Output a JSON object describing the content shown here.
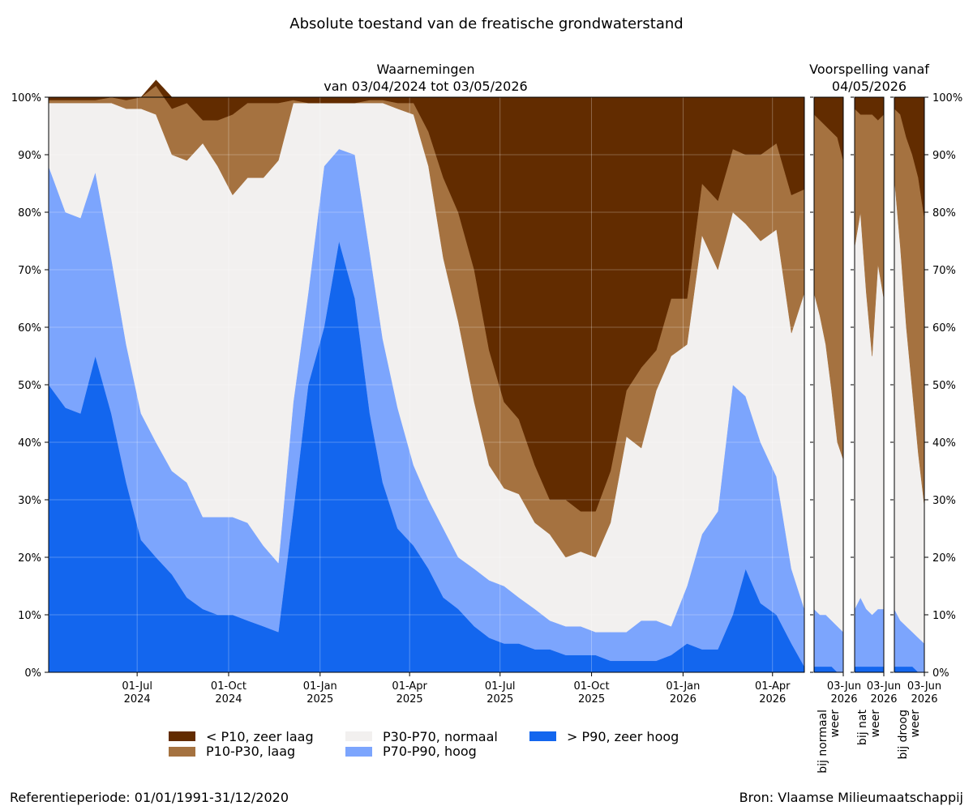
{
  "title": "Absolute toestand van de freatische grondwaterstand",
  "footer": {
    "reference": "Referentieperiode: 01/01/1991-31/12/2020",
    "source": "Bron: Vlaamse Milieumaatschappij"
  },
  "colors": {
    "zeer_laag": "#622c00",
    "laag": "#a57240",
    "normaal": "#f2f0ef",
    "hoog": "#7ca5fd",
    "zeer_hoog": "#1366ee"
  },
  "legend": [
    {
      "key": "zeer_laag",
      "label": "< P10, zeer laag"
    },
    {
      "key": "laag",
      "label": "P10-P30, laag"
    },
    {
      "key": "normaal",
      "label": "P30-P70, normaal"
    },
    {
      "key": "hoog",
      "label": "P70-P90, hoog"
    },
    {
      "key": "zeer_hoog",
      "label": "> P90, zeer hoog"
    }
  ],
  "chart_data": [
    {
      "type": "area",
      "stacked": true,
      "title_line1": "Waarnemingen",
      "title_line2": "van 03/04/2024 tot 03/05/2026",
      "ylim": [
        0,
        100
      ],
      "yticks": [
        "0%",
        "10%",
        "20%",
        "30%",
        "40%",
        "50%",
        "60%",
        "70%",
        "80%",
        "90%",
        "100%"
      ],
      "grid": true,
      "xlim": [
        "2024-04-03",
        "2026-05-03"
      ],
      "xticks": [
        {
          "date": "2024-07-01",
          "label1": "01-Jul",
          "label2": "2024"
        },
        {
          "date": "2024-10-01",
          "label1": "01-Oct",
          "label2": "2024"
        },
        {
          "date": "2025-01-01",
          "label1": "01-Jan",
          "label2": "2025"
        },
        {
          "date": "2025-04-01",
          "label1": "01-Apr",
          "label2": "2025"
        },
        {
          "date": "2025-07-01",
          "label1": "01-Jul",
          "label2": "2025"
        },
        {
          "date": "2025-10-01",
          "label1": "01-Oct",
          "label2": "2025"
        },
        {
          "date": "2026-01-01",
          "label1": "01-Jan",
          "label2": "2026"
        },
        {
          "date": "2026-04-01",
          "label1": "01-Apr",
          "label2": "2026"
        }
      ],
      "x": [
        "2024-04-03",
        "2024-04-20",
        "2024-05-05",
        "2024-05-20",
        "2024-06-05",
        "2024-06-20",
        "2024-07-05",
        "2024-07-20",
        "2024-08-05",
        "2024-08-20",
        "2024-09-05",
        "2024-09-20",
        "2024-10-05",
        "2024-10-20",
        "2024-11-05",
        "2024-11-20",
        "2024-12-05",
        "2024-12-20",
        "2025-01-05",
        "2025-01-20",
        "2025-02-05",
        "2025-02-20",
        "2025-03-05",
        "2025-03-20",
        "2025-04-05",
        "2025-04-20",
        "2025-05-05",
        "2025-05-20",
        "2025-06-05",
        "2025-06-20",
        "2025-07-05",
        "2025-07-20",
        "2025-08-05",
        "2025-08-20",
        "2025-09-05",
        "2025-09-20",
        "2025-10-05",
        "2025-10-20",
        "2025-11-05",
        "2025-11-20",
        "2025-12-05",
        "2025-12-20",
        "2026-01-05",
        "2026-01-20",
        "2026-02-05",
        "2026-02-20",
        "2026-03-05",
        "2026-03-20",
        "2026-04-05",
        "2026-04-20",
        "2026-05-03"
      ],
      "series": [
        {
          "key": "zeer_hoog",
          "values": [
            50,
            46,
            45,
            55,
            45,
            33,
            23,
            20,
            17,
            13,
            11,
            10,
            10,
            9,
            8,
            7,
            28,
            50,
            60,
            75,
            65,
            45,
            33,
            25,
            22,
            18,
            13,
            11,
            8,
            6,
            5,
            5,
            4,
            4,
            3,
            3,
            3,
            2,
            2,
            2,
            2,
            3,
            5,
            4,
            4,
            10,
            18,
            12,
            10,
            5,
            1
          ]
        },
        {
          "key": "hoog",
          "values": [
            38,
            34,
            34,
            32,
            27,
            24,
            22,
            20,
            18,
            20,
            16,
            17,
            17,
            17,
            14,
            12,
            19,
            16,
            28,
            16,
            25,
            28,
            25,
            21,
            14,
            12,
            12,
            9,
            10,
            10,
            10,
            8,
            7,
            5,
            5,
            5,
            4,
            5,
            5,
            7,
            7,
            5,
            10,
            20,
            24,
            40,
            30,
            28,
            24,
            13,
            10
          ]
        },
        {
          "key": "normaal",
          "values": [
            11,
            19,
            20,
            12,
            27,
            41,
            53,
            57,
            55,
            56,
            65,
            61,
            56,
            60,
            64,
            70,
            52,
            33,
            11,
            8,
            9,
            26,
            41,
            52,
            61,
            58,
            47,
            41,
            29,
            20,
            17,
            18,
            15,
            15,
            12,
            13,
            13,
            19,
            34,
            30,
            40,
            47,
            42,
            52,
            42,
            30,
            30,
            35,
            43,
            41,
            55
          ]
        },
        {
          "key": "laag",
          "values": [
            0.5,
            0.5,
            0.5,
            0.5,
            1,
            1.5,
            2,
            5,
            8,
            10,
            4,
            8,
            14,
            13,
            13,
            10,
            0.5,
            0,
            0,
            0,
            0,
            0.5,
            0.5,
            1,
            2,
            6,
            14,
            19,
            23,
            20,
            15,
            13,
            10,
            6,
            10,
            7,
            8,
            9,
            8,
            14,
            7,
            10,
            8,
            9,
            12,
            11,
            12,
            15,
            15,
            24,
            18
          ]
        },
        {
          "key": "zeer_laag",
          "values": [
            0.5,
            0.5,
            0.5,
            0.5,
            0,
            0.5,
            0,
            1,
            2,
            1,
            4,
            4,
            3,
            1,
            1,
            1,
            0.5,
            1,
            1,
            1,
            1,
            0.5,
            0.5,
            1,
            1,
            6,
            14,
            20,
            30,
            44,
            53,
            56,
            64,
            70,
            70,
            72,
            72,
            65,
            51,
            47,
            44,
            35,
            35,
            15,
            18,
            9,
            10,
            10,
            8,
            17,
            16
          ]
        }
      ]
    },
    {
      "type": "area",
      "stacked": true,
      "scenario_line1": "bij normaal",
      "scenario_line2": "weer",
      "xtick_label1": "03-Jun",
      "xtick_label2": "2026",
      "x": [
        "2026-05-04",
        "2026-05-10",
        "2026-05-16",
        "2026-05-22",
        "2026-05-28",
        "2026-06-03"
      ],
      "series": [
        {
          "key": "zeer_hoog",
          "values": [
            1,
            1,
            1,
            1,
            0,
            0
          ]
        },
        {
          "key": "hoog",
          "values": [
            10,
            9,
            9,
            8,
            8,
            7
          ]
        },
        {
          "key": "normaal",
          "values": [
            55,
            52,
            47,
            40,
            32,
            30
          ]
        },
        {
          "key": "laag",
          "values": [
            31,
            34,
            38,
            45,
            53,
            52
          ]
        },
        {
          "key": "zeer_laag",
          "values": [
            3,
            4,
            5,
            6,
            7,
            11
          ]
        }
      ]
    },
    {
      "type": "area",
      "stacked": true,
      "scenario_line1": "bij nat",
      "scenario_line2": "weer",
      "xtick_label1": "03-Jun",
      "xtick_label2": "2026",
      "x": [
        "2026-05-04",
        "2026-05-10",
        "2026-05-16",
        "2026-05-22",
        "2026-05-28",
        "2026-06-03"
      ],
      "series": [
        {
          "key": "zeer_hoog",
          "values": [
            1,
            1,
            1,
            1,
            1,
            1
          ]
        },
        {
          "key": "hoog",
          "values": [
            10,
            12,
            10,
            9,
            10,
            10
          ]
        },
        {
          "key": "normaal",
          "values": [
            63,
            67,
            55,
            45,
            60,
            54
          ]
        },
        {
          "key": "laag",
          "values": [
            24,
            17,
            31,
            42,
            25,
            32
          ]
        },
        {
          "key": "zeer_laag",
          "values": [
            2,
            3,
            3,
            3,
            4,
            3
          ]
        }
      ]
    },
    {
      "type": "area",
      "stacked": true,
      "scenario_line1": "bij droog",
      "scenario_line2": "weer",
      "xtick_label1": "03-Jun",
      "xtick_label2": "2026",
      "x": [
        "2026-05-04",
        "2026-05-10",
        "2026-05-16",
        "2026-05-22",
        "2026-05-28",
        "2026-06-03"
      ],
      "series": [
        {
          "key": "zeer_hoog",
          "values": [
            1,
            1,
            1,
            1,
            0,
            0
          ]
        },
        {
          "key": "hoog",
          "values": [
            10,
            8,
            7,
            6,
            6,
            5
          ]
        },
        {
          "key": "normaal",
          "values": [
            75,
            65,
            52,
            42,
            32,
            24
          ]
        },
        {
          "key": "laag",
          "values": [
            12,
            23,
            33,
            41,
            48,
            50
          ]
        },
        {
          "key": "zeer_laag",
          "values": [
            2,
            3,
            7,
            10,
            14,
            21
          ]
        }
      ]
    }
  ],
  "forecast_header": {
    "line1": "Voorspelling vanaf",
    "line2": "04/05/2026"
  }
}
